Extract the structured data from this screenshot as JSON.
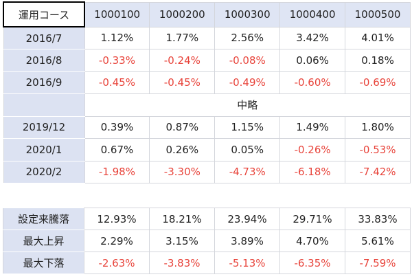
{
  "returns_table": {
    "header": [
      "運用コース",
      "1000100",
      "1000200",
      "1000300",
      "1000400",
      "1000500"
    ],
    "rows_before": [
      [
        "2016/7",
        "1.12%",
        "1.77%",
        "2.56%",
        "3.42%",
        "4.01%"
      ],
      [
        "2016/8",
        "-0.33%",
        "-0.24%",
        "-0.08%",
        "0.06%",
        "0.18%"
      ],
      [
        "2016/9",
        "-0.45%",
        "-0.45%",
        "-0.49%",
        "-0.60%",
        "-0.69%"
      ]
    ],
    "gap_row": "中略",
    "rows_after": [
      [
        "2019/12",
        "0.39%",
        "0.87%",
        "1.15%",
        "1.49%",
        "1.80%"
      ],
      [
        "2020/1",
        "0.67%",
        "0.26%",
        "0.05%",
        "-0.26%",
        "-0.53%"
      ],
      [
        "2020/2",
        "-1.98%",
        "-3.30%",
        "-4.73%",
        "-6.18%",
        "-7.42%"
      ]
    ]
  },
  "summary_table": {
    "rows": [
      [
        "設定来騰落",
        "12.93%",
        "18.21%",
        "23.94%",
        "29.71%",
        "33.83%"
      ],
      [
        "最大上昇",
        "2.29%",
        "3.15%",
        "3.89%",
        "4.70%",
        "5.61%"
      ],
      [
        "最大下落",
        "-2.63%",
        "-3.83%",
        "-5.13%",
        "-6.35%",
        "-7.59%"
      ]
    ]
  }
}
